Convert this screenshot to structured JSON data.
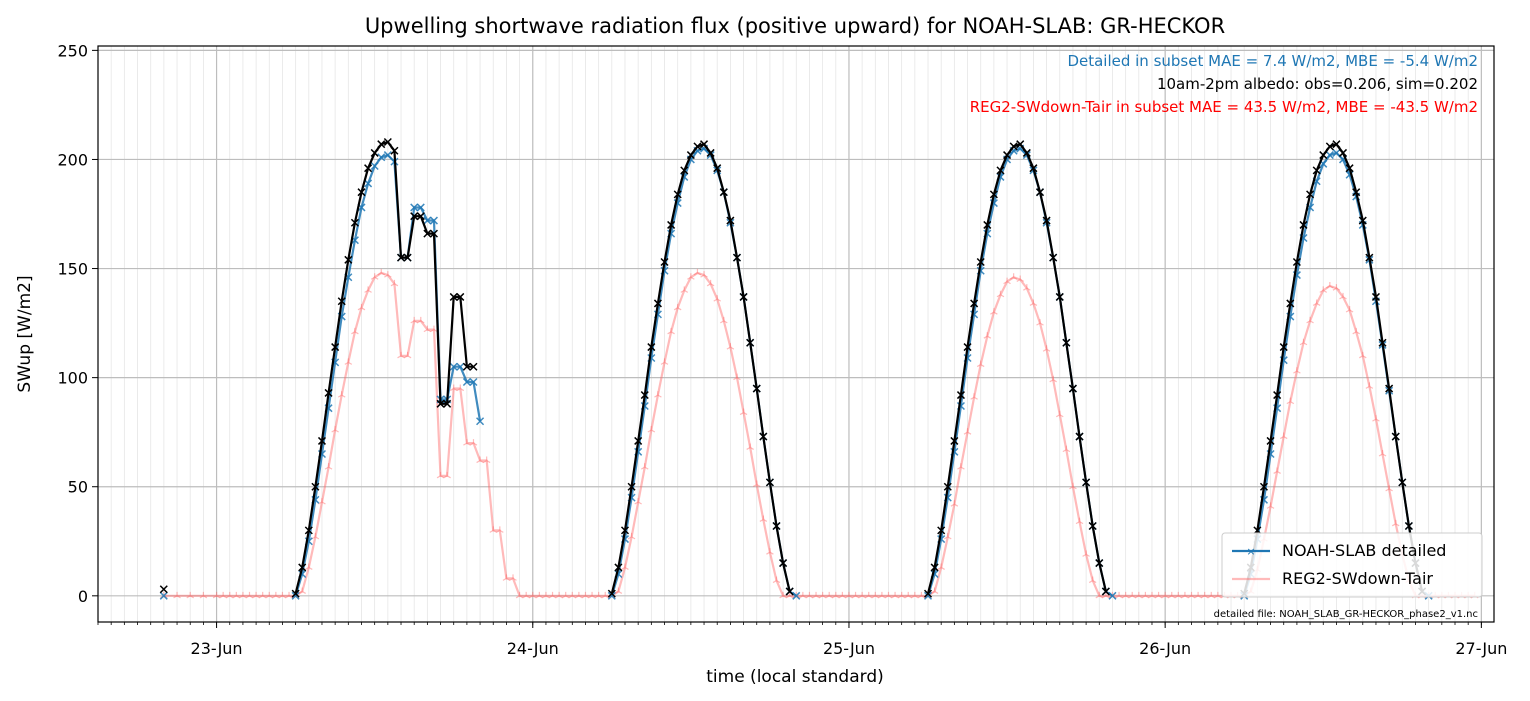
{
  "chart_data": {
    "type": "line",
    "title": "Upwelling shortwave radiation flux (positive upward) for NOAH-SLAB: GR-HECKOR",
    "xlabel": "time (local standard)",
    "ylabel": "SWup [W/m2]",
    "x_ticks": [
      {
        "label": "23-Jun",
        "day": 1
      },
      {
        "label": "24-Jun",
        "day": 2
      },
      {
        "label": "25-Jun",
        "day": 3
      },
      {
        "label": "26-Jun",
        "day": 4
      },
      {
        "label": "27-Jun",
        "day": 5
      }
    ],
    "y_ticks": [
      0,
      50,
      100,
      150,
      200,
      250
    ],
    "ylim": [
      -12,
      252
    ],
    "xlim_days": [
      0.625,
      5.04
    ],
    "grid": true,
    "minor_grid_step_days": 0.0416667,
    "annotations": [
      {
        "text": "Detailed in subset MAE = 7.4 W/m2, MBE = -5.4 W/m2",
        "color": "#1f77b4"
      },
      {
        "text": "10am-2pm albedo: obs=0.206, sim=0.202",
        "color": "#000000"
      },
      {
        "text": "REG2-SWdown-Tair in subset MAE = 43.5 W/m2, MBE = -43.5 W/m2",
        "color": "#ff0000"
      }
    ],
    "footnote": "detailed file: NOAH_SLAB_GR-HECKOR_phase2_v1.nc",
    "legend_position": "lower right",
    "series": [
      {
        "name": "NOAH-SLAB detailed",
        "color": "#1f77b4",
        "marker": "x",
        "in_legend": true,
        "points": []
      },
      {
        "name": "REG2-SWdown-Tair",
        "color": "#ff6666",
        "marker": "tri",
        "in_legend": true,
        "points": []
      },
      {
        "name": "",
        "color": "#000000",
        "marker": "x",
        "in_legend": false,
        "points": []
      }
    ]
  }
}
